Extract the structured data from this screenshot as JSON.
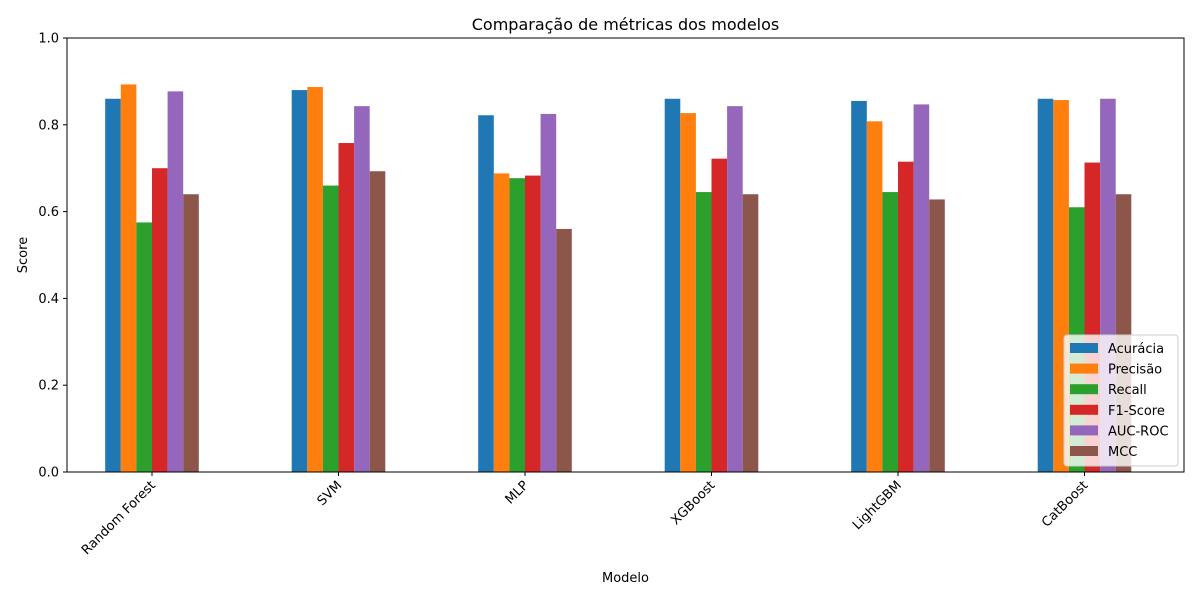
{
  "chart_data": {
    "type": "bar",
    "title": "Comparação de métricas dos modelos",
    "xlabel": "Modelo",
    "ylabel": "Score",
    "ylim": [
      0,
      1
    ],
    "yticks": [
      "0.0",
      "0.2",
      "0.4",
      "0.6",
      "0.8",
      "1.0"
    ],
    "categories": [
      "Random Forest",
      "SVM",
      "MLP",
      "XGBoost",
      "LightGBM",
      "CatBoost"
    ],
    "series": [
      {
        "name": "Acurácia",
        "color": "#1f77b4",
        "values": [
          0.86,
          0.88,
          0.822,
          0.86,
          0.855,
          0.86
        ]
      },
      {
        "name": "Precisão",
        "color": "#ff7f0e",
        "values": [
          0.893,
          0.887,
          0.688,
          0.827,
          0.808,
          0.857
        ]
      },
      {
        "name": "Recall",
        "color": "#2ca02c",
        "values": [
          0.575,
          0.66,
          0.677,
          0.645,
          0.645,
          0.61
        ]
      },
      {
        "name": "F1-Score",
        "color": "#d62728",
        "values": [
          0.7,
          0.758,
          0.683,
          0.722,
          0.715,
          0.713
        ]
      },
      {
        "name": "AUC-ROC",
        "color": "#9467bd",
        "values": [
          0.877,
          0.843,
          0.825,
          0.843,
          0.847,
          0.86
        ]
      },
      {
        "name": "MCC",
        "color": "#8c564b",
        "values": [
          0.64,
          0.693,
          0.56,
          0.64,
          0.628,
          0.64
        ]
      }
    ],
    "legend_position": "lower-right",
    "grid": false
  }
}
